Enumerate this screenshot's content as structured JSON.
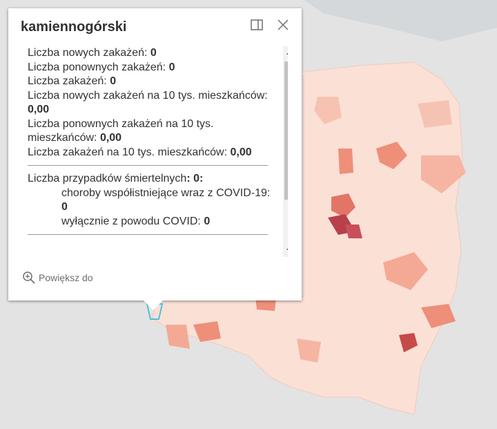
{
  "popup": {
    "title": "kamiennogórski",
    "fields": [
      {
        "label": "Liczba nowych zakażeń:",
        "value": "0"
      },
      {
        "label": "Liczba ponownych zakażeń:",
        "value": "0"
      },
      {
        "label": "Liczba zakażeń:",
        "value": "0"
      },
      {
        "label": "Liczba nowych zakażeń na 10 tys. mieszkańców:",
        "value": "0,00"
      },
      {
        "label": "Liczba ponownych zakażeń na 10 tys. mieszkańców:",
        "value": "0,00"
      },
      {
        "label": "Liczba zakażeń na 10 tys. mieszkańców:",
        "value": "0,00"
      }
    ],
    "deaths": {
      "label": "Liczba przypadków śmiertelnych",
      "value": ": 0:",
      "details": [
        {
          "label": "choroby współistniejące wraz z COVID-19:",
          "value": "0"
        },
        {
          "label": "wyłącznie z powodu COVID:",
          "value": "0"
        }
      ]
    },
    "zoom_action": "Powiększ do"
  }
}
